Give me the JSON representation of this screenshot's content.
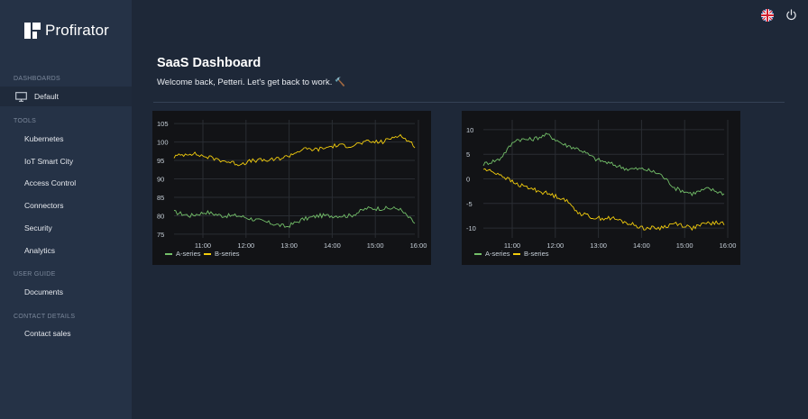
{
  "app": {
    "brand_name": "Profirator"
  },
  "sidebar": {
    "sections": [
      {
        "label": "Dashboards",
        "items": [
          {
            "label": "Default",
            "icon": "monitor-icon",
            "active": true
          }
        ]
      },
      {
        "label": "Tools",
        "items": [
          {
            "label": "Kubernetes"
          },
          {
            "label": "IoT Smart City"
          },
          {
            "label": "Access Control"
          },
          {
            "label": "Connectors"
          },
          {
            "label": "Security"
          },
          {
            "label": "Analytics"
          }
        ]
      },
      {
        "label": "User Guide",
        "items": [
          {
            "label": "Documents"
          }
        ]
      },
      {
        "label": "Contact Details",
        "items": [
          {
            "label": "Contact sales"
          }
        ]
      }
    ]
  },
  "header": {
    "language_icon": "uk-flag-icon",
    "power_icon": "power-icon"
  },
  "main": {
    "title": "SaaS Dashboard",
    "subtitle": "Welcome back, Petteri. Let's get back to work. 🔨"
  },
  "colors": {
    "a_series": "#73bf69",
    "b_series": "#f2cc0c",
    "panel_bg": "#121316",
    "grid": "#2a2d33",
    "axis_text": "#c7d0d9"
  },
  "chart_data": [
    {
      "type": "line",
      "x_ticks": [
        "11:00",
        "12:00",
        "13:00",
        "14:00",
        "15:00",
        "16:00"
      ],
      "ylim": [
        74,
        106
      ],
      "y_ticks": [
        75,
        80,
        85,
        90,
        95,
        100,
        105
      ],
      "series": [
        {
          "name": "A-series",
          "values": [
            81,
            80,
            81,
            80,
            80,
            79,
            78,
            77,
            79,
            80,
            80,
            80,
            82,
            82,
            82,
            78
          ]
        },
        {
          "name": "B-series",
          "values": [
            96,
            97,
            96,
            95,
            94,
            95,
            95,
            96,
            98,
            98,
            99,
            99,
            100,
            100,
            102,
            99
          ]
        }
      ]
    },
    {
      "type": "line",
      "x_ticks": [
        "11:00",
        "12:00",
        "13:00",
        "14:00",
        "15:00",
        "16:00"
      ],
      "ylim": [
        -12,
        12
      ],
      "y_ticks": [
        -10,
        -5,
        0,
        5,
        10
      ],
      "series": [
        {
          "name": "A-series",
          "values": [
            3,
            4,
            8,
            8,
            9,
            7,
            6,
            4,
            3,
            2,
            2,
            1,
            -2,
            -3,
            -2,
            -3
          ]
        },
        {
          "name": "B-series",
          "values": [
            2,
            1,
            -1,
            -2,
            -3,
            -4,
            -7,
            -8,
            -8,
            -9,
            -10,
            -10,
            -9,
            -10,
            -9,
            -9
          ]
        }
      ]
    }
  ]
}
